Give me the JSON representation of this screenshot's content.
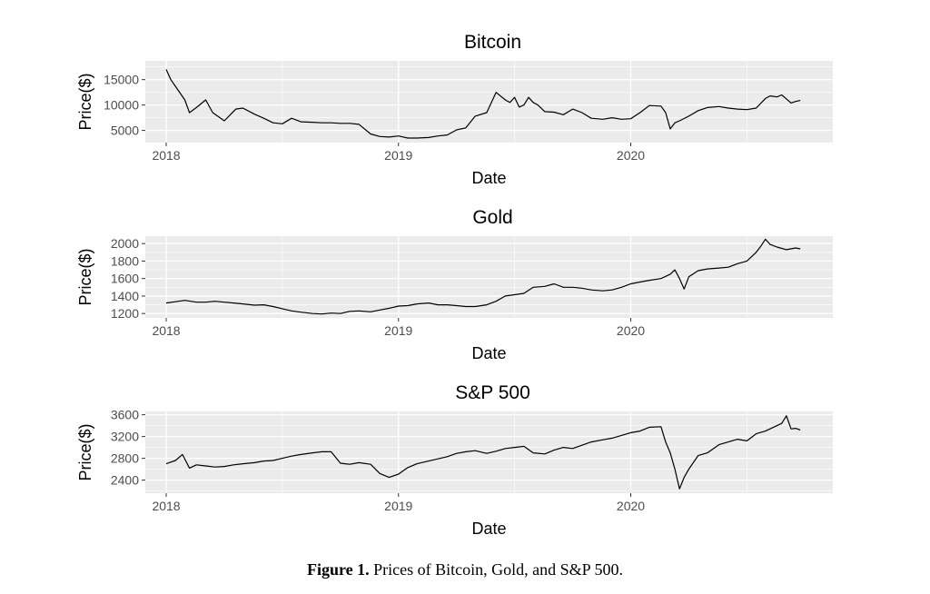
{
  "caption": {
    "label": "Figure 1.",
    "text": "Prices of Bitcoin, Gold, and S&P 500."
  },
  "colors": {
    "panel_bg": "#ebebeb",
    "grid": "#ffffff",
    "line": "#000000",
    "tick_label": "#4d4d4d"
  },
  "chart_data": [
    {
      "type": "line",
      "title": "Bitcoin",
      "xlabel": "Date",
      "ylabel": "Price($)",
      "xlim": [
        2017.91,
        2020.87
      ],
      "ylim": [
        2600,
        18700
      ],
      "x_ticks": [
        {
          "value": 2018,
          "label": "2018"
        },
        {
          "value": 2019,
          "label": "2019"
        },
        {
          "value": 2020,
          "label": "2020"
        }
      ],
      "y_ticks": [
        {
          "value": 5000,
          "label": "5000"
        },
        {
          "value": 10000,
          "label": "10000"
        },
        {
          "value": 15000,
          "label": "15000"
        }
      ],
      "grid": true,
      "series": [
        {
          "x": [
            2018.0,
            2018.02,
            2018.05,
            2018.08,
            2018.1,
            2018.13,
            2018.17,
            2018.2,
            2018.25,
            2018.3,
            2018.33,
            2018.38,
            2018.42,
            2018.46,
            2018.5,
            2018.54,
            2018.58,
            2018.63,
            2018.67,
            2018.71,
            2018.75,
            2018.79,
            2018.83,
            2018.88,
            2018.92,
            2018.96,
            2019.0,
            2019.04,
            2019.08,
            2019.13,
            2019.17,
            2019.21,
            2019.25,
            2019.29,
            2019.33,
            2019.38,
            2019.42,
            2019.46,
            2019.48,
            2019.5,
            2019.52,
            2019.54,
            2019.56,
            2019.58,
            2019.6,
            2019.63,
            2019.67,
            2019.71,
            2019.75,
            2019.79,
            2019.83,
            2019.88,
            2019.92,
            2019.96,
            2020.0,
            2020.04,
            2020.08,
            2020.13,
            2020.15,
            2020.17,
            2020.19,
            2020.21,
            2020.25,
            2020.29,
            2020.33,
            2020.38,
            2020.42,
            2020.46,
            2020.5,
            2020.54,
            2020.58,
            2020.6,
            2020.63,
            2020.65,
            2020.67,
            2020.69,
            2020.71,
            2020.73
          ],
          "y": [
            17000,
            15000,
            13000,
            11000,
            8500,
            9500,
            11000,
            8500,
            6900,
            9200,
            9400,
            8200,
            7400,
            6500,
            6300,
            7400,
            6700,
            6600,
            6500,
            6500,
            6400,
            6400,
            6200,
            4300,
            3800,
            3700,
            3900,
            3500,
            3500,
            3600,
            3900,
            4100,
            5100,
            5500,
            7800,
            8500,
            12500,
            11000,
            10500,
            11500,
            9600,
            10000,
            11500,
            10500,
            10000,
            8700,
            8600,
            8100,
            9200,
            8500,
            7400,
            7200,
            7500,
            7200,
            7300,
            8500,
            9900,
            9800,
            8500,
            5300,
            6500,
            6900,
            7800,
            8900,
            9500,
            9700,
            9400,
            9200,
            9100,
            9400,
            11300,
            11800,
            11600,
            12000,
            11200,
            10400,
            10700,
            10900
          ]
        }
      ]
    },
    {
      "type": "line",
      "title": "Gold",
      "xlabel": "Date",
      "ylabel": "Price($)",
      "xlim": [
        2017.91,
        2020.87
      ],
      "ylim": [
        1150,
        2085
      ],
      "x_ticks": [
        {
          "value": 2018,
          "label": "2018"
        },
        {
          "value": 2019,
          "label": "2019"
        },
        {
          "value": 2020,
          "label": "2020"
        }
      ],
      "y_ticks": [
        {
          "value": 1200,
          "label": "1200"
        },
        {
          "value": 1400,
          "label": "1400"
        },
        {
          "value": 1600,
          "label": "1600"
        },
        {
          "value": 1800,
          "label": "1800"
        },
        {
          "value": 2000,
          "label": "2000"
        }
      ],
      "grid": true,
      "series": [
        {
          "x": [
            2018.0,
            2018.04,
            2018.08,
            2018.13,
            2018.17,
            2018.21,
            2018.25,
            2018.29,
            2018.33,
            2018.38,
            2018.42,
            2018.46,
            2018.5,
            2018.54,
            2018.58,
            2018.63,
            2018.67,
            2018.71,
            2018.75,
            2018.79,
            2018.83,
            2018.88,
            2018.92,
            2018.96,
            2019.0,
            2019.04,
            2019.08,
            2019.13,
            2019.17,
            2019.21,
            2019.25,
            2019.29,
            2019.33,
            2019.38,
            2019.42,
            2019.46,
            2019.5,
            2019.54,
            2019.58,
            2019.63,
            2019.67,
            2019.71,
            2019.75,
            2019.79,
            2019.83,
            2019.88,
            2019.92,
            2019.96,
            2020.0,
            2020.04,
            2020.08,
            2020.13,
            2020.17,
            2020.19,
            2020.21,
            2020.23,
            2020.25,
            2020.29,
            2020.33,
            2020.38,
            2020.42,
            2020.46,
            2020.5,
            2020.54,
            2020.56,
            2020.58,
            2020.6,
            2020.63,
            2020.67,
            2020.71,
            2020.73
          ],
          "y": [
            1320,
            1335,
            1350,
            1330,
            1330,
            1340,
            1330,
            1320,
            1310,
            1295,
            1300,
            1280,
            1255,
            1230,
            1215,
            1200,
            1195,
            1205,
            1200,
            1225,
            1230,
            1220,
            1240,
            1260,
            1285,
            1290,
            1310,
            1320,
            1300,
            1300,
            1290,
            1280,
            1280,
            1300,
            1340,
            1400,
            1415,
            1430,
            1500,
            1510,
            1540,
            1500,
            1500,
            1490,
            1470,
            1460,
            1470,
            1500,
            1540,
            1560,
            1580,
            1600,
            1650,
            1700,
            1600,
            1480,
            1620,
            1690,
            1710,
            1720,
            1730,
            1770,
            1800,
            1900,
            1970,
            2050,
            1990,
            1960,
            1930,
            1950,
            1940
          ]
        }
      ]
    },
    {
      "type": "line",
      "title": "S&P 500",
      "xlabel": "Date",
      "ylabel": "Price($)",
      "xlim": [
        2017.91,
        2020.87
      ],
      "ylim": [
        2160,
        3660
      ],
      "x_ticks": [
        {
          "value": 2018,
          "label": "2018"
        },
        {
          "value": 2019,
          "label": "2019"
        },
        {
          "value": 2020,
          "label": "2020"
        }
      ],
      "y_ticks": [
        {
          "value": 2400,
          "label": "2400"
        },
        {
          "value": 2800,
          "label": "2800"
        },
        {
          "value": 3200,
          "label": "3200"
        },
        {
          "value": 3600,
          "label": "3600"
        }
      ],
      "grid": true,
      "series": [
        {
          "x": [
            2018.0,
            2018.04,
            2018.07,
            2018.1,
            2018.13,
            2018.17,
            2018.21,
            2018.25,
            2018.29,
            2018.33,
            2018.38,
            2018.42,
            2018.46,
            2018.5,
            2018.54,
            2018.58,
            2018.63,
            2018.67,
            2018.71,
            2018.75,
            2018.79,
            2018.83,
            2018.88,
            2018.92,
            2018.96,
            2019.0,
            2019.04,
            2019.08,
            2019.13,
            2019.17,
            2019.21,
            2019.25,
            2019.29,
            2019.33,
            2019.38,
            2019.42,
            2019.46,
            2019.5,
            2019.54,
            2019.58,
            2019.63,
            2019.67,
            2019.71,
            2019.75,
            2019.79,
            2019.83,
            2019.88,
            2019.92,
            2019.96,
            2020.0,
            2020.04,
            2020.08,
            2020.13,
            2020.15,
            2020.17,
            2020.19,
            2020.21,
            2020.23,
            2020.25,
            2020.29,
            2020.33,
            2020.38,
            2020.42,
            2020.46,
            2020.5,
            2020.54,
            2020.58,
            2020.63,
            2020.65,
            2020.67,
            2020.69,
            2020.71,
            2020.73
          ],
          "y": [
            2700,
            2760,
            2870,
            2620,
            2680,
            2660,
            2640,
            2650,
            2680,
            2700,
            2720,
            2750,
            2760,
            2800,
            2840,
            2870,
            2900,
            2920,
            2920,
            2710,
            2690,
            2720,
            2690,
            2520,
            2450,
            2510,
            2630,
            2700,
            2750,
            2790,
            2830,
            2890,
            2920,
            2940,
            2890,
            2930,
            2980,
            3000,
            3020,
            2900,
            2880,
            2950,
            3000,
            2980,
            3040,
            3100,
            3140,
            3170,
            3220,
            3270,
            3300,
            3370,
            3380,
            3100,
            2900,
            2600,
            2240,
            2450,
            2600,
            2850,
            2900,
            3050,
            3100,
            3150,
            3120,
            3250,
            3300,
            3400,
            3440,
            3580,
            3340,
            3350,
            3320
          ]
        }
      ]
    }
  ]
}
